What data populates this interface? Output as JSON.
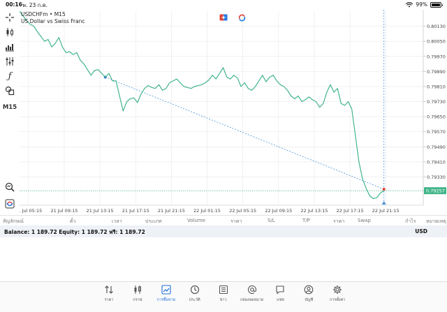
{
  "status_bar": {
    "time": "00:16",
    "date": "พ. 23 ก.ค.",
    "battery": "99%",
    "battery_level": 0.99
  },
  "toolbar": {
    "timeframe": "M15"
  },
  "chart": {
    "symbol_line": "USDCHFm • M15",
    "description": "US Dollar vs Swiss Franc",
    "current_price_label": "0.79257",
    "colors": {
      "line": "#41b58a",
      "grid": "#e8e8e8",
      "price_line": "#41b58a",
      "crosshair": "#4a90d9",
      "trend": "#4a90d9",
      "label_bg": "#41b58a"
    }
  },
  "chart_data": {
    "type": "line",
    "ylim": [
      0.7918,
      0.8021
    ],
    "y_ticks": [
      "0.80130",
      "0.80050",
      "0.79970",
      "0.79890",
      "0.79810",
      "0.79730",
      "0.79650",
      "0.79570",
      "0.79490",
      "0.79410",
      "0.79330",
      "0.79257"
    ],
    "x_ticks": [
      "21 Jul 05:15",
      "21 Jul 09:15",
      "21 Jul 13:15",
      "21 Jul 17:15",
      "21 Jul 21:15",
      "22 Jul 01:15",
      "22 Jul 05:15",
      "22 Jul 09:15",
      "22 Jul 13:15",
      "22 Jul 17:15",
      "22 Jul 21:15"
    ],
    "x_range": [
      0,
      113
    ],
    "series": [
      {
        "values": [
          0.8021,
          0.80185,
          0.8016,
          0.8014,
          0.8013,
          0.801,
          0.80075,
          0.8005,
          0.8006,
          0.8002,
          0.8004,
          0.8007,
          0.8002,
          0.7999,
          0.79995,
          0.7998,
          0.7999,
          0.7995,
          0.7993,
          0.799,
          0.7987,
          0.79895,
          0.799,
          0.7988,
          0.7986,
          0.7988,
          0.7984,
          0.7984,
          0.7976,
          0.7968,
          0.7973,
          0.79745,
          0.7975,
          0.79725,
          0.7977,
          0.798,
          0.79815,
          0.79805,
          0.798,
          0.7982,
          0.7979,
          0.798,
          0.7983,
          0.7984,
          0.7985,
          0.7983,
          0.7981,
          0.79805,
          0.798,
          0.7981,
          0.79815,
          0.7982,
          0.7983,
          0.79845,
          0.7987,
          0.7985,
          0.7988,
          0.7991,
          0.7986,
          0.7985,
          0.7987,
          0.79855,
          0.7981,
          0.7983,
          0.798,
          0.7979,
          0.7981,
          0.7984,
          0.7987,
          0.79835,
          0.7986,
          0.7987,
          0.7984,
          0.7982,
          0.7981,
          0.7979,
          0.7976,
          0.79745,
          0.7976,
          0.7973,
          0.7974,
          0.79755,
          0.7974,
          0.7973,
          0.797,
          0.7972,
          0.7978,
          0.7982,
          0.7978,
          0.798,
          0.7972,
          0.7971,
          0.7973,
          0.7969,
          0.7955,
          0.7941,
          0.7932,
          0.7927,
          0.7923,
          0.79215,
          0.7922,
          0.79245,
          0.79257
        ],
        "color": "#41b58a"
      }
    ],
    "trendline": {
      "from": [
        24,
        0.7986
      ],
      "to": [
        102,
        0.79265
      ]
    },
    "crosshair_x": 102,
    "current_price": 0.79257
  },
  "trade_table": {
    "columns": [
      "สัญลักษณ์",
      "ตั๋ว",
      "เวลา",
      "ประเภท",
      "Volume",
      "ราคา",
      "S/L",
      "T/P",
      "ราคา",
      "Swap",
      "กำไร",
      "หมายเหตุ"
    ]
  },
  "account": {
    "balance_text": "Balance: 1 189.72 Equity: 1 189.72 ฟรี: 1 189.72",
    "currency": "USD"
  },
  "tabs": [
    {
      "label": "ราคา",
      "icon": "quotes-arrows-icon",
      "active": false
    },
    {
      "label": "กราฟ",
      "icon": "candles-icon",
      "active": false
    },
    {
      "label": "การซื้อขาย",
      "icon": "trade-chart-icon",
      "active": true
    },
    {
      "label": "ประวัติ",
      "icon": "history-clock-icon",
      "active": false
    },
    {
      "label": "ข่าว",
      "icon": "news-icon",
      "active": false
    },
    {
      "label": "กล่องจดหมาย",
      "icon": "mailbox-at-icon",
      "active": false
    },
    {
      "label": "แชท",
      "icon": "chat-bubble-icon",
      "active": false
    },
    {
      "label": "บัญชี",
      "icon": "account-user-icon",
      "active": false
    },
    {
      "label": "การตั้งค่า",
      "icon": "settings-gear-icon",
      "active": false
    }
  ]
}
